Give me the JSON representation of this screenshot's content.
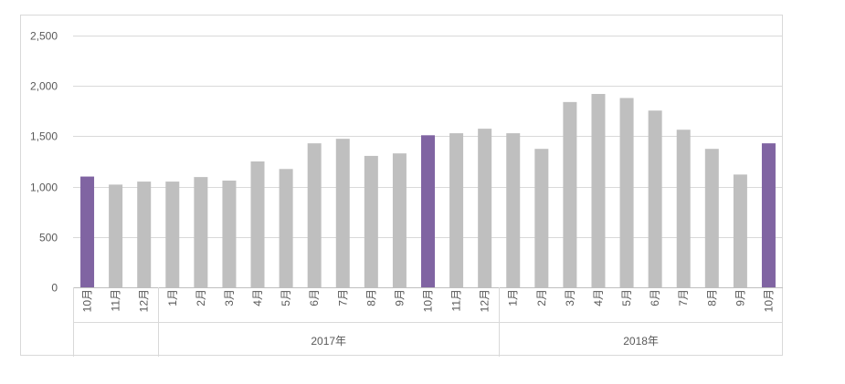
{
  "chart_data": {
    "type": "bar",
    "categories": [
      "10月",
      "11月",
      "12月",
      "1月",
      "2月",
      "3月",
      "4月",
      "5月",
      "6月",
      "7月",
      "8月",
      "9月",
      "10月",
      "11月",
      "12月",
      "1月",
      "2月",
      "3月",
      "4月",
      "5月",
      "6月",
      "7月",
      "8月",
      "9月",
      "10月"
    ],
    "values": [
      1100,
      1020,
      1050,
      1050,
      1095,
      1060,
      1250,
      1175,
      1430,
      1475,
      1305,
      1330,
      1510,
      1530,
      1575,
      1530,
      1375,
      1840,
      1920,
      1880,
      1755,
      1565,
      1375,
      1120,
      1430
    ],
    "highlight_indices": [
      0,
      12,
      24
    ],
    "groups": [
      {
        "label": "",
        "start": 0,
        "end": 2
      },
      {
        "label": "2017年",
        "start": 3,
        "end": 14
      },
      {
        "label": "2018年",
        "start": 15,
        "end": 24
      }
    ],
    "y_ticks": [
      0,
      500,
      1000,
      1500,
      2000,
      2500
    ],
    "y_tick_labels": [
      "0",
      "500",
      "1,000",
      "1,500",
      "2,000",
      "2,500"
    ],
    "ylim": [
      0,
      2500
    ],
    "grid": true,
    "colors": {
      "bar": "#bfbfbf",
      "highlight": "#8064a2",
      "grid": "#d9d9d9",
      "axis": "#bfbfbf",
      "text": "#595959"
    }
  }
}
